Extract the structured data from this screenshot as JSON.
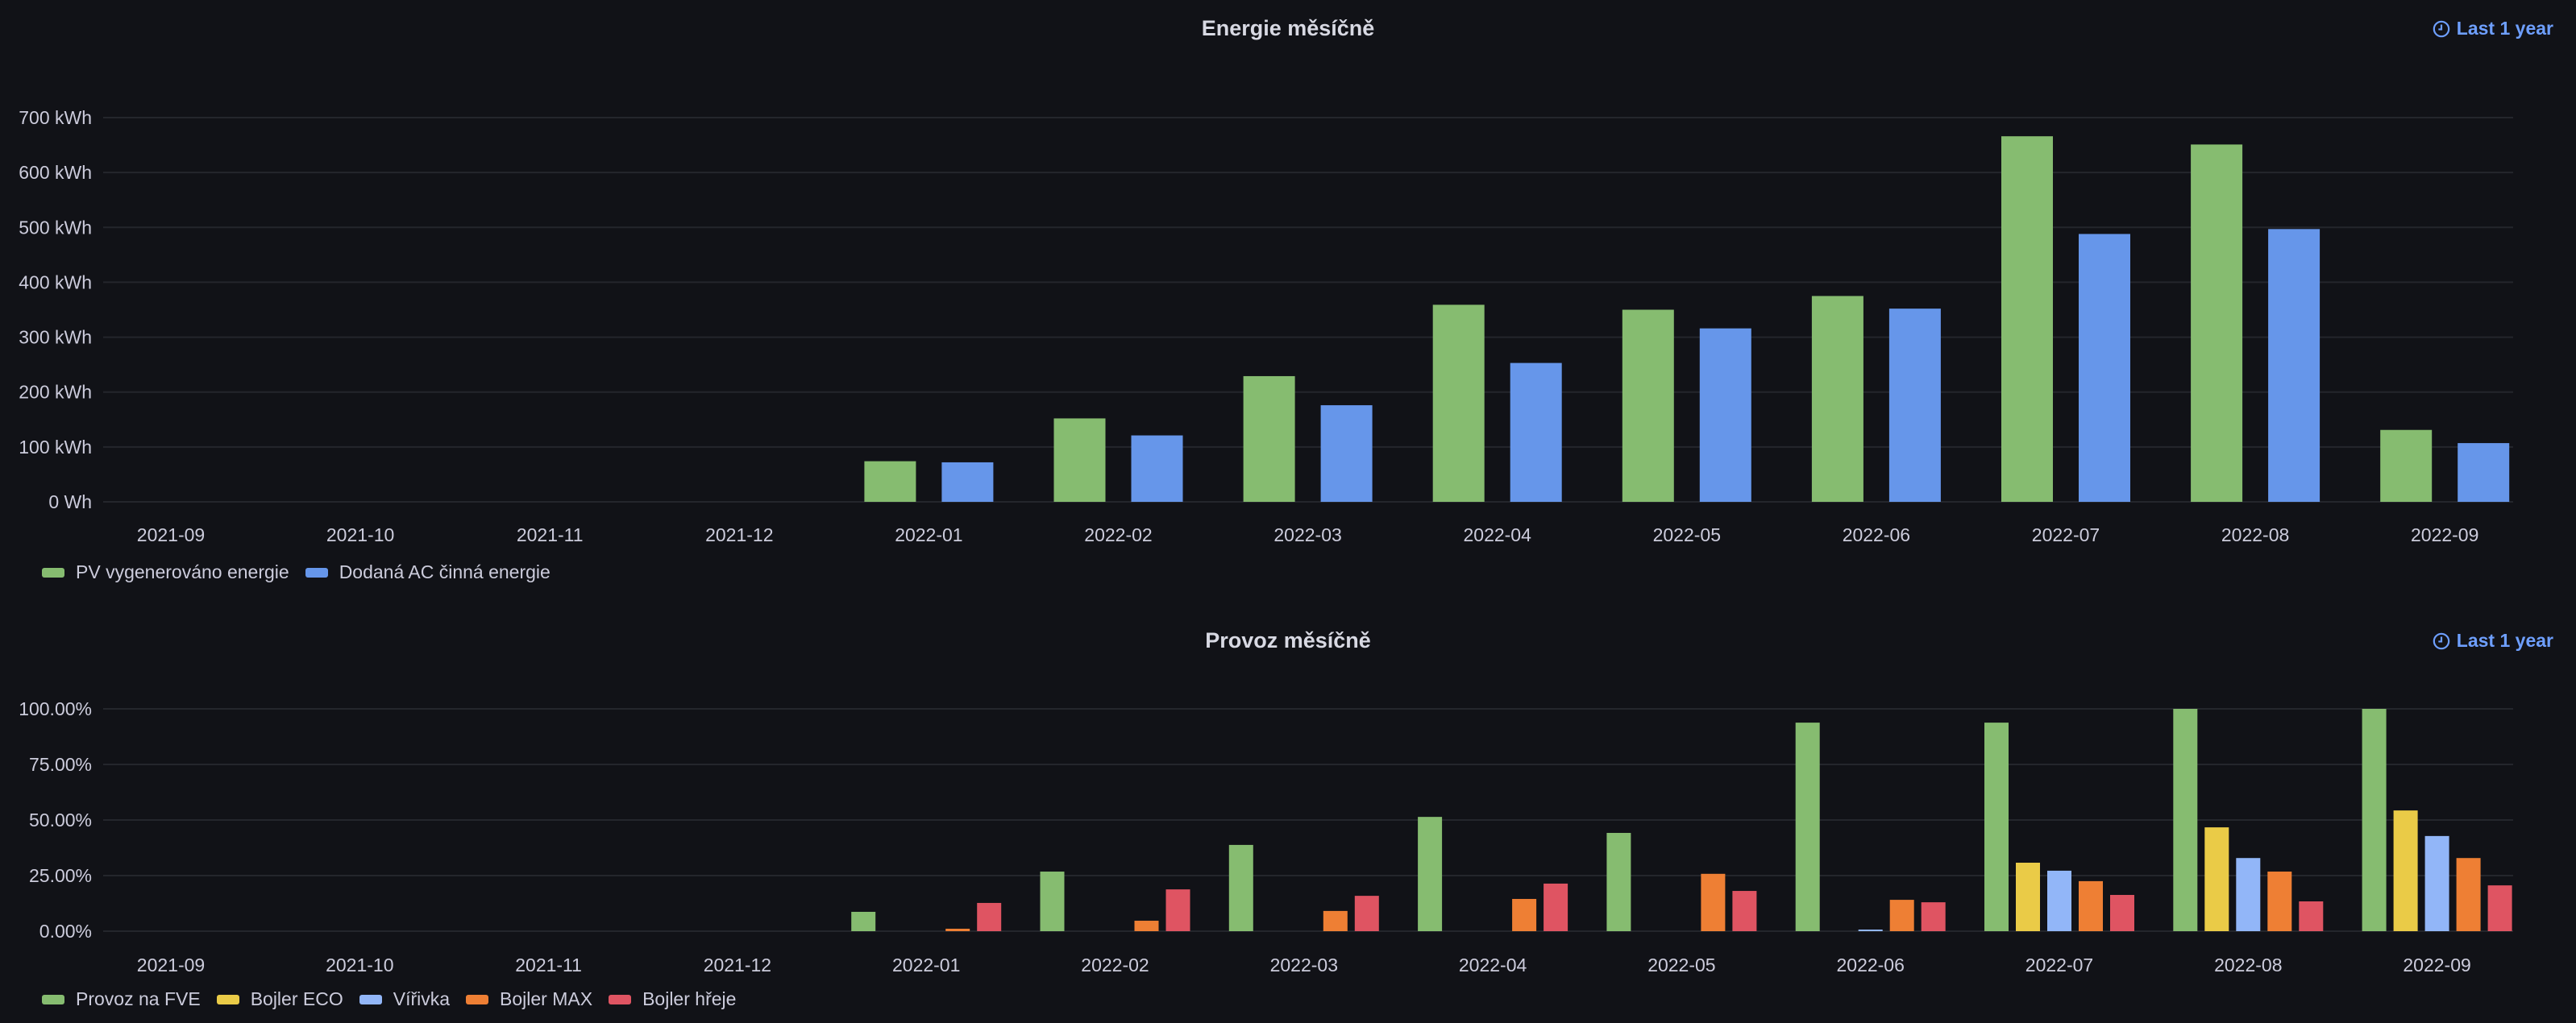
{
  "panels": [
    {
      "title": "Energie měsíčně",
      "time_range": "Last 1 year",
      "time_icon": "clock-icon"
    },
    {
      "title": "Provoz měsíčně",
      "time_range": "Last 1 year",
      "time_icon": "clock-icon"
    }
  ],
  "chart_data": [
    {
      "type": "bar",
      "title": "Energie měsíčně",
      "xlabel": "",
      "ylabel": "",
      "ylim": [
        0,
        700
      ],
      "yticks": [
        0,
        100,
        200,
        300,
        400,
        500,
        600,
        700
      ],
      "ytick_labels": [
        "0 Wh",
        "100 kWh",
        "200 kWh",
        "300 kWh",
        "400 kWh",
        "500 kWh",
        "600 kWh",
        "700 kWh"
      ],
      "grid": true,
      "legend_position": "bottom-left",
      "categories": [
        "2021-09",
        "2021-10",
        "2021-11",
        "2021-12",
        "2022-01",
        "2022-02",
        "2022-03",
        "2022-04",
        "2022-05",
        "2022-06",
        "2022-07",
        "2022-08",
        "2022-09"
      ],
      "series": [
        {
          "name": "PV vygenerováno energie",
          "color": "#86bc70",
          "values": [
            null,
            null,
            null,
            null,
            74,
            152,
            229,
            359,
            350,
            375,
            666,
            651,
            131
          ]
        },
        {
          "name": "Dodaná AC činná energie",
          "color": "#6696ea",
          "values": [
            null,
            null,
            null,
            null,
            72,
            121,
            176,
            253,
            316,
            352,
            488,
            497,
            107
          ]
        }
      ]
    },
    {
      "type": "bar",
      "title": "Provoz měsíčně",
      "xlabel": "",
      "ylabel": "",
      "ylim": [
        0,
        100
      ],
      "yticks": [
        0,
        25,
        50,
        75,
        100
      ],
      "ytick_labels": [
        "0.00%",
        "25.00%",
        "50.00%",
        "75.00%",
        "100.00%"
      ],
      "grid": true,
      "legend_position": "bottom-left",
      "categories": [
        "2021-09",
        "2021-10",
        "2021-11",
        "2021-12",
        "2022-01",
        "2022-02",
        "2022-03",
        "2022-04",
        "2022-05",
        "2022-06",
        "2022-07",
        "2022-08",
        "2022-09"
      ],
      "series": [
        {
          "name": "Provoz na FVE",
          "color": "#86bc70",
          "values": [
            null,
            null,
            null,
            null,
            8.7,
            26.8,
            38.8,
            51.4,
            44.2,
            93.8,
            93.8,
            100,
            100
          ]
        },
        {
          "name": "Bojler ECO",
          "color": "#eacb47",
          "values": [
            null,
            null,
            null,
            null,
            0,
            0,
            0,
            0,
            0,
            0,
            30.8,
            46.7,
            54.3
          ]
        },
        {
          "name": "Vířivka",
          "color": "#92b6f8",
          "values": [
            null,
            null,
            null,
            null,
            0,
            0,
            0,
            0,
            0,
            0.3,
            27.2,
            32.9,
            42.8
          ]
        },
        {
          "name": "Bojler MAX",
          "color": "#ee7f34",
          "values": [
            null,
            null,
            null,
            null,
            1.1,
            4.7,
            9.1,
            14.5,
            25.8,
            14.1,
            22.5,
            26.8,
            32.9
          ]
        },
        {
          "name": "Bojler hřeje",
          "color": "#df5462",
          "values": [
            null,
            null,
            null,
            null,
            12.7,
            18.8,
            15.9,
            21.4,
            18.1,
            13.0,
            16.3,
            13.4,
            20.6
          ]
        }
      ]
    }
  ]
}
